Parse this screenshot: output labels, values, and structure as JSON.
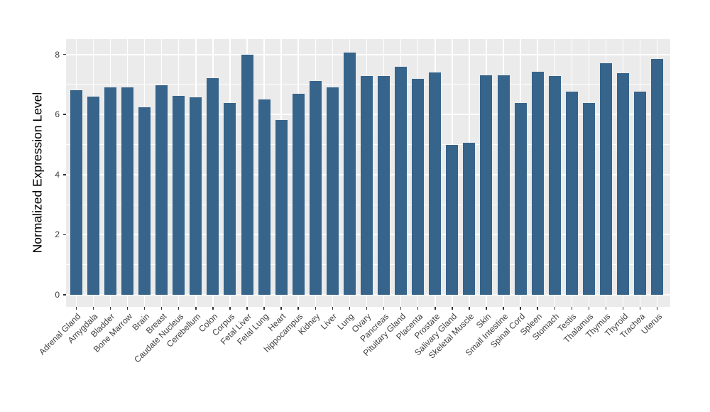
{
  "chart_data": {
    "type": "bar",
    "title": "",
    "xlabel": "",
    "ylabel": "Normalized Expression Level",
    "ylim": [
      0,
      8.5
    ],
    "yticks": [
      0,
      2,
      4,
      6,
      8
    ],
    "minor_yticks": [
      1,
      3,
      5,
      7
    ],
    "grid": "horizontal major and minor white gridlines, vertical white gridlines at each category, on gray panel",
    "legend_position": "none",
    "bar_color": "#36648B",
    "panel_background": "#EBEBEB",
    "gridline_color": "#FFFFFF",
    "tick_label_color": "#404040",
    "axis_title_color": "#000000",
    "categories": [
      "Adrenal Gland",
      "Amygdala",
      "Bladder",
      "Bone Marrow",
      "Brain",
      "Breast",
      "Caudate Nucleus",
      "Cerebellum",
      "Colon",
      "Corpus",
      "Fetal Liver",
      "Fetal Lung",
      "Heart",
      "hippocampus",
      "Kidney",
      "Liver",
      "Lung",
      "Ovary",
      "Pancreas",
      "Pituitary Gland",
      "Placenta",
      "Prostate",
      "Salivary Gland",
      "Skeletal Muscle",
      "Skin",
      "Small Intestine",
      "Spinal Cord",
      "Spleen",
      "Stomach",
      "Testis",
      "Thalamus",
      "Thymus",
      "Thyroid",
      "Trachea",
      "Uterus"
    ],
    "values": [
      6.8,
      6.6,
      6.9,
      6.9,
      6.25,
      6.98,
      6.63,
      6.57,
      7.2,
      6.38,
      7.98,
      6.5,
      5.82,
      6.7,
      7.12,
      6.9,
      8.06,
      7.27,
      7.27,
      7.58,
      7.18,
      7.41,
      5.0,
      5.05,
      7.31,
      7.3,
      6.38,
      7.42,
      7.29,
      6.77,
      6.38,
      7.71,
      7.38,
      6.76,
      7.85
    ]
  }
}
